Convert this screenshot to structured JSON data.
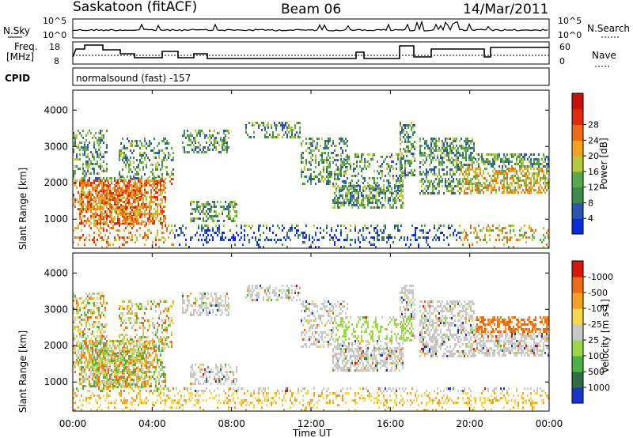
{
  "header": {
    "station": "Saskatoon (fitACF)",
    "beam": "Beam 06",
    "date": "14/Mar/2011"
  },
  "noise_panel": {
    "left_label": "N.Sky",
    "right_label": "N.Search",
    "left_ticks": [
      "10^5",
      "10^0"
    ],
    "right_ticks": [
      "10^5",
      "10^0"
    ]
  },
  "freq_panel": {
    "left_label_line1": "Freq.",
    "left_label_line2": "[MHz]",
    "right_label": "Nave",
    "left_ticks": [
      "18",
      "8"
    ],
    "right_ticks": [
      "60",
      "0"
    ]
  },
  "cpid_panel": {
    "label": "CPID",
    "text": "normalsound (fast) -157"
  },
  "x_axis": {
    "title": "Time UT",
    "ticks": [
      "00:00",
      "04:00",
      "08:00",
      "12:00",
      "16:00",
      "20:00",
      "00:00"
    ]
  },
  "chart_data": [
    {
      "type": "heatmap",
      "title": "",
      "ylabel": "Slant Range [km]",
      "xlabel": "Time UT",
      "y_ticks": [
        "1000",
        "2000",
        "3000",
        "4000"
      ],
      "ylim": [
        200,
        4550
      ],
      "colorbar": {
        "label": "Power [dB]",
        "tick_labels": [
          "4",
          "8",
          "12",
          "16",
          "20",
          "24",
          "28"
        ],
        "colors": [
          "#0a2bdc",
          "#2a55b5",
          "#3f8a4a",
          "#5aa84e",
          "#b8c83a",
          "#f3a21d",
          "#ef6a12",
          "#e02a10",
          "#c8100c"
        ]
      }
    },
    {
      "type": "heatmap",
      "title": "",
      "ylabel": "Slant Range [km]",
      "xlabel": "Time UT",
      "y_ticks": [
        "1000",
        "2000",
        "3000",
        "4000"
      ],
      "ylim": [
        200,
        4550
      ],
      "colorbar": {
        "label": "Velocity [m s-1]",
        "tick_labels": [
          "1000",
          "500",
          "100",
          "25",
          "-25",
          "-100",
          "-500",
          "-1000"
        ],
        "colors": [
          "#1a33c8",
          "#2f6e45",
          "#4bb046",
          "#9ad84a",
          "#c8c8c8",
          "#f4d84a",
          "#f4a020",
          "#ee6a10",
          "#d81810"
        ]
      }
    }
  ]
}
